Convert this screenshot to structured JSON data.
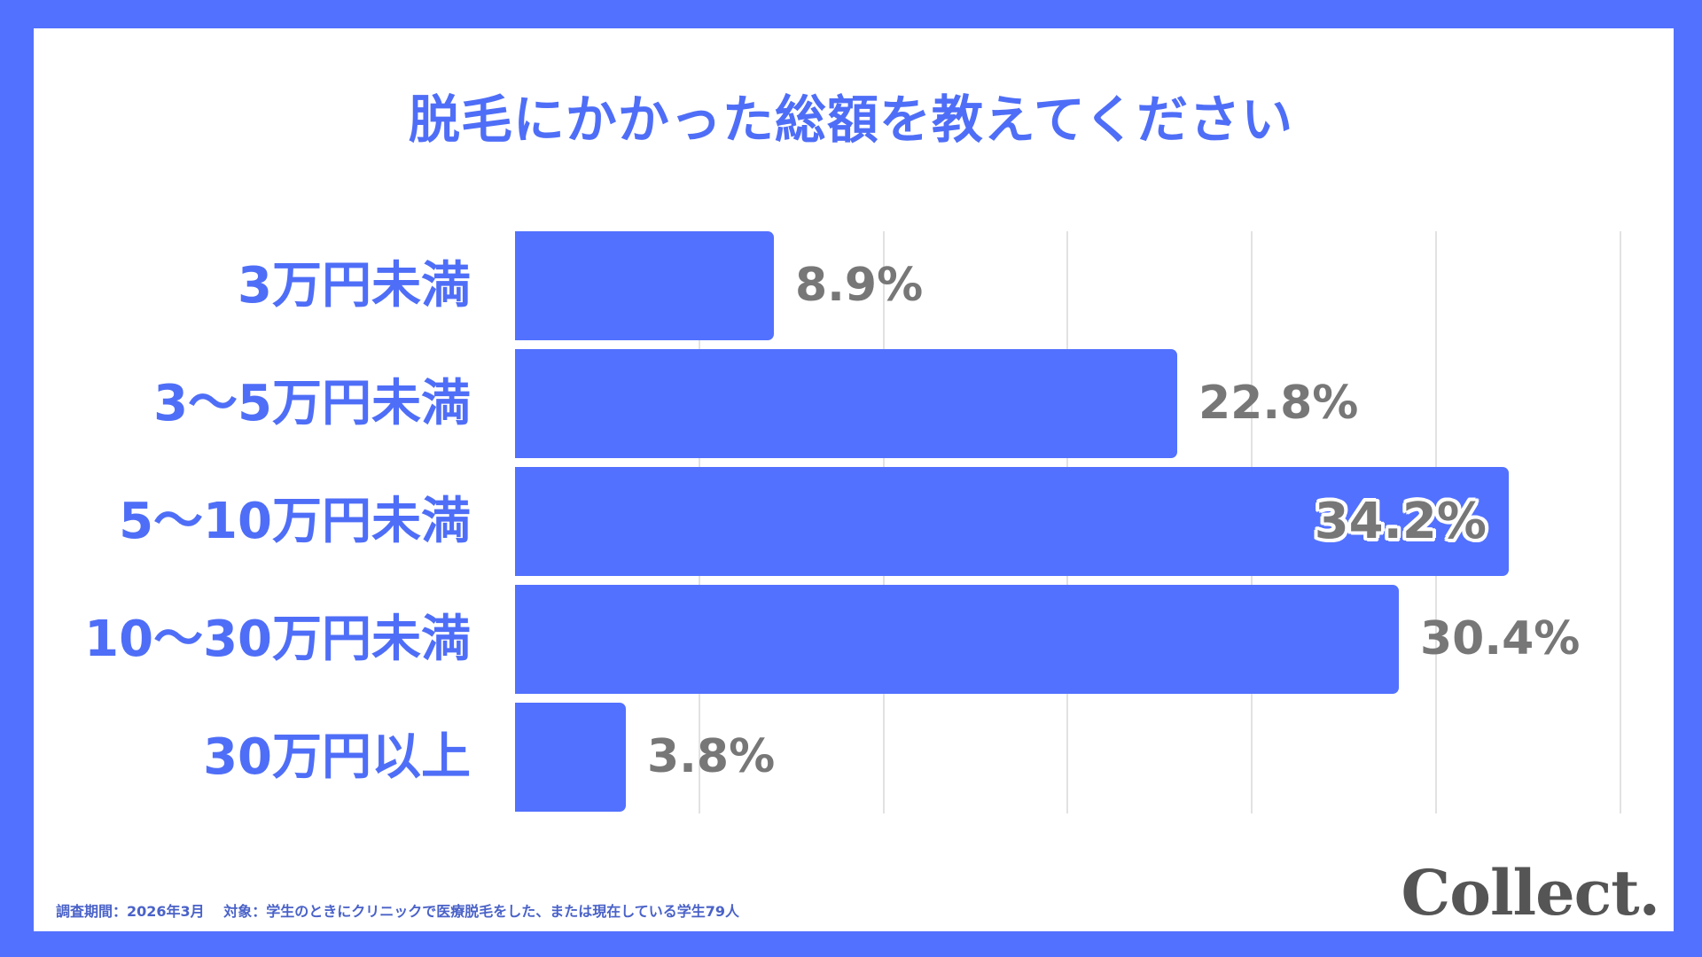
{
  "colors": {
    "frame": "#5271ff",
    "bar": "#5271ff",
    "label": "#4f6ef7",
    "value": "#777777",
    "footnote": "#4a62c8",
    "logo": "#555555",
    "gridline": "#e2e2e2"
  },
  "title": "脱毛にかかった総額を教えてください",
  "footnote": "調査期間：2026年3月　 対象：学生のときにクリニックで医療脱毛をした、または現在している学生79人",
  "logo": "Collect.",
  "chart_data": {
    "type": "bar",
    "orientation": "horizontal",
    "title": "脱毛にかかった総額を教えてください",
    "categories": [
      "3万円未満",
      "3〜5万円未満",
      "5〜10万円未満",
      "10〜30万円未満",
      "30万円以上"
    ],
    "values": [
      8.9,
      22.8,
      34.2,
      30.4,
      3.8
    ],
    "value_labels": [
      "8.9%",
      "22.8%",
      "34.2%",
      "30.4%",
      "3.8%"
    ],
    "unit": "%",
    "highlight_index": 2,
    "xlabel": "",
    "ylabel": "",
    "xlim": [
      0,
      38
    ],
    "grid": true,
    "gridline_count": 6,
    "legend": null
  }
}
